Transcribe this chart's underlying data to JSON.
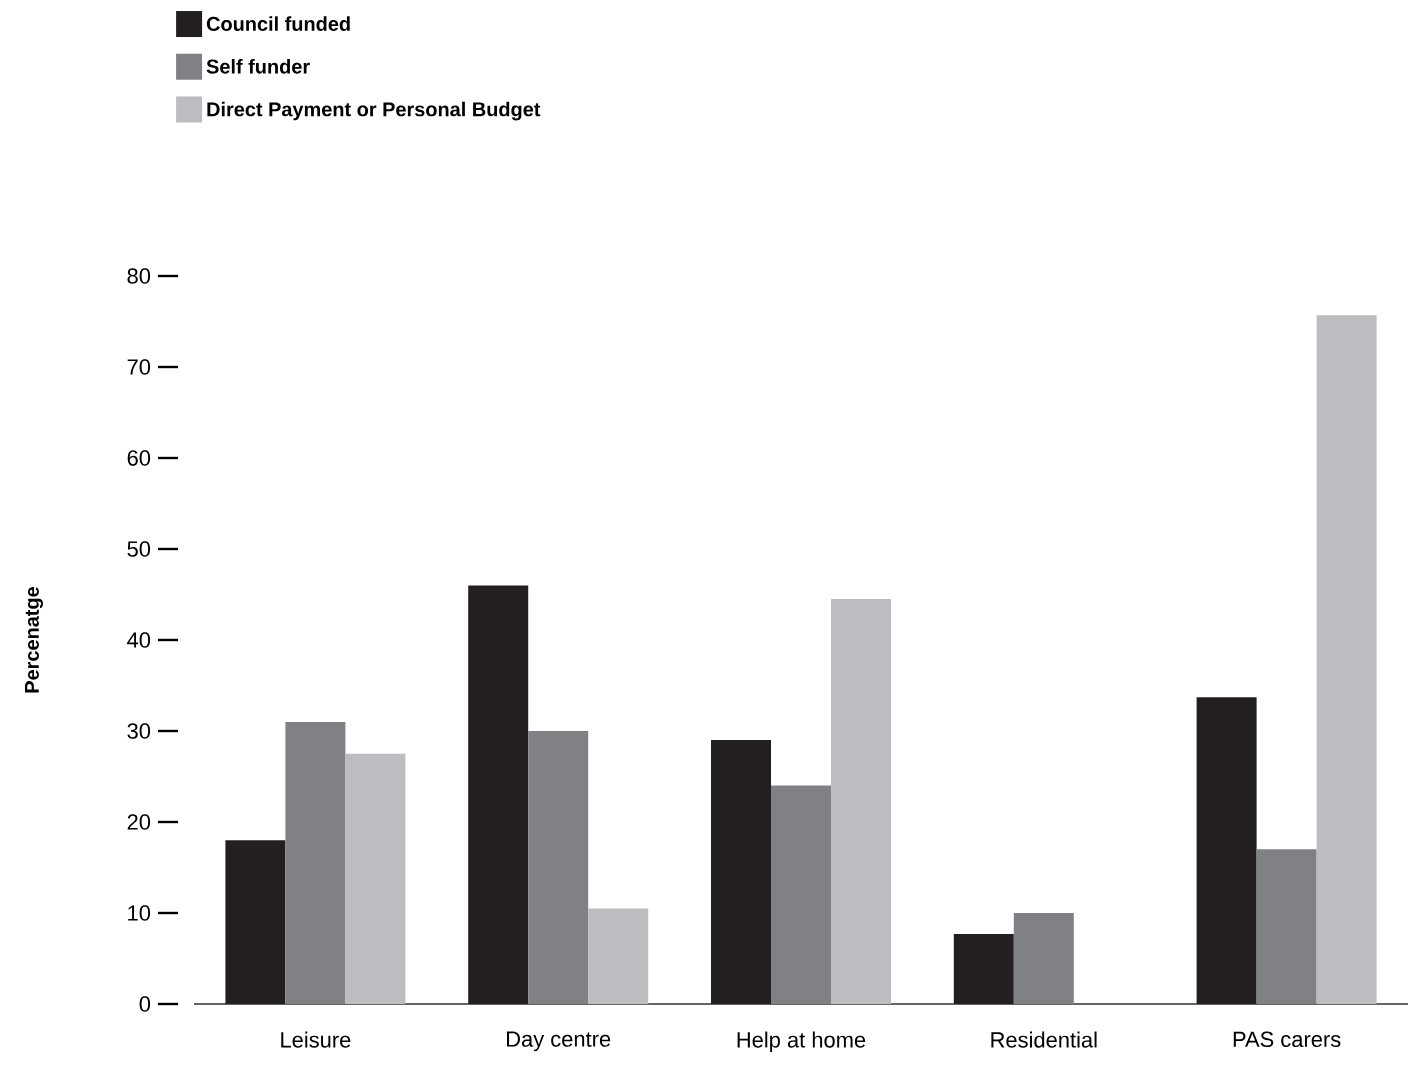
{
  "chart_data": {
    "type": "bar",
    "ylabel": "Percenatge",
    "categories": [
      "Leisure",
      "Day centre",
      "Help at home",
      "Residential",
      "PAS carers"
    ],
    "series": [
      {
        "name": "Council funded",
        "color": "#231f20",
        "values": [
          18,
          46,
          29,
          7.7,
          33.7
        ]
      },
      {
        "name": "Self funder",
        "color": "#808184",
        "values": [
          31,
          30,
          24,
          10,
          17
        ]
      },
      {
        "name": "Direct Payment or Personal Budget",
        "color": "#bcbdc0",
        "values": [
          27.5,
          10.5,
          44.5,
          null,
          75.7
        ]
      }
    ],
    "ylim": [
      0,
      80
    ],
    "yticks": [
      0,
      10,
      20,
      30,
      40,
      50,
      60,
      70,
      80
    ],
    "legend": "top left"
  }
}
